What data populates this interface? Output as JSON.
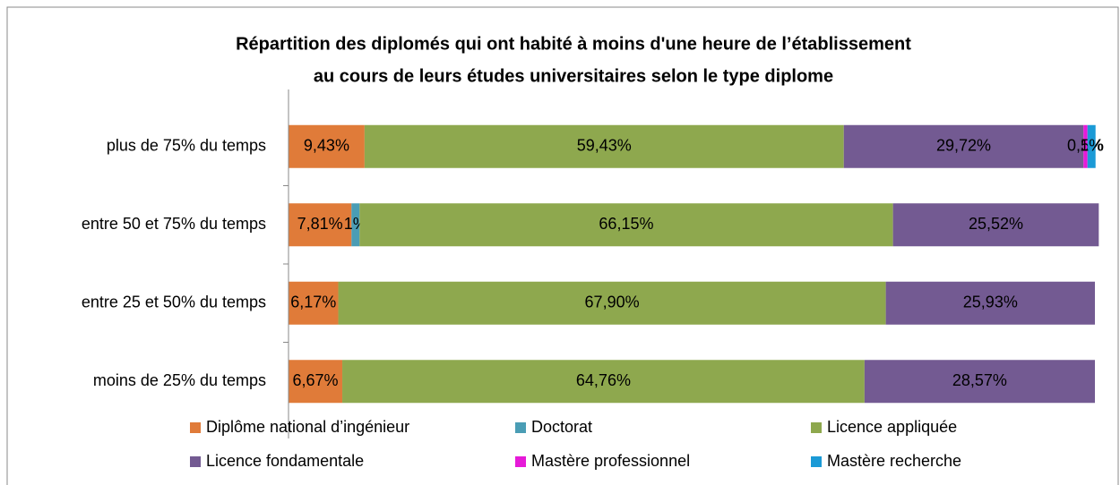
{
  "chart_data": {
    "type": "stacked-bar-horizontal",
    "title": [
      "Répartition des diplomés qui ont habité à moins d'une heure de l’établissement",
      "au cours de leurs études universitaires selon le type diplome"
    ],
    "categories": [
      "plus de 75% du temps",
      "entre 50 et 75% du temps",
      "entre 25 et 50% du temps",
      "moins de 25% du temps"
    ],
    "xlim": [
      0,
      100
    ],
    "series": [
      {
        "name": "Diplôme national d’ingénieur",
        "color": "#e07b39",
        "values": [
          9.43,
          7.81,
          6.17,
          6.67
        ],
        "value_labels": [
          "9,43%",
          "7,81%",
          "6,17%",
          "6,67%"
        ]
      },
      {
        "name": "Doctorat",
        "color": "#4a9db5",
        "values": [
          null,
          1,
          null,
          null
        ],
        "value_labels": [
          null,
          "1%",
          null,
          null
        ]
      },
      {
        "name": "Licence appliquée",
        "color": "#8ea84e",
        "values": [
          59.43,
          66.15,
          67.9,
          64.76
        ],
        "value_labels": [
          "59,43%",
          "66,15%",
          "67,90%",
          "64,76%"
        ]
      },
      {
        "name": "Licence fondamentale",
        "color": "#735a92",
        "values": [
          29.72,
          25.52,
          25.93,
          28.57
        ],
        "value_labels": [
          "29,72%",
          "25,52%",
          "25,93%",
          "28,57%"
        ]
      },
      {
        "name": "Mastère professionnel",
        "color": "#e61ad8",
        "values": [
          0.5,
          null,
          null,
          null
        ],
        "value_labels": [
          "0,5%",
          null,
          null,
          null
        ]
      },
      {
        "name": "Mastère recherche",
        "color": "#1b9ad6",
        "values": [
          1,
          null,
          null,
          null
        ],
        "value_labels": [
          "1%",
          null,
          null,
          null
        ]
      }
    ]
  }
}
